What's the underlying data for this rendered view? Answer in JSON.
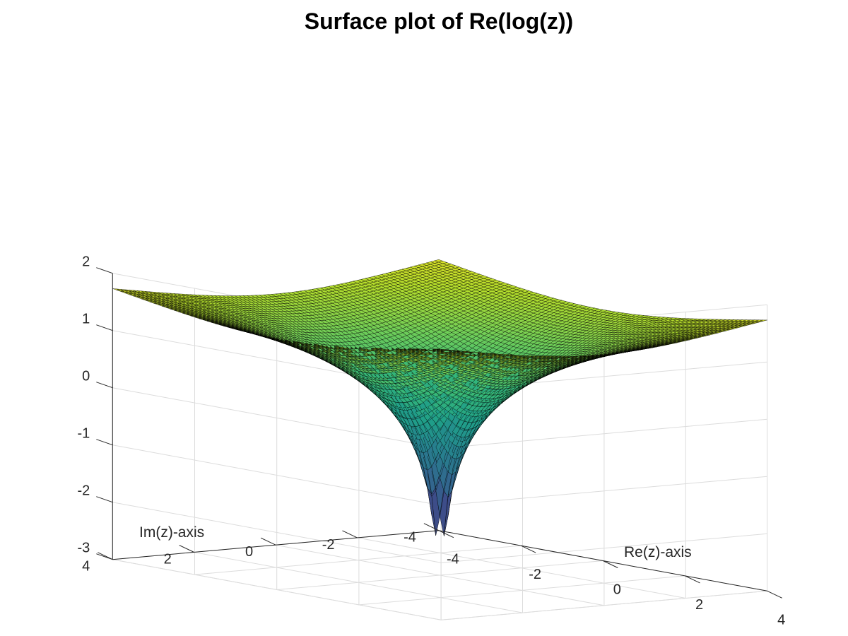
{
  "chart_data": {
    "type": "surface",
    "title": "Surface plot of Re(log(z))",
    "function": "Re(log(z))",
    "xlabel": "Re(z)-axis",
    "ylabel": "Im(z)-axis",
    "zlabel": "",
    "xlim": [
      -4,
      4
    ],
    "ylim": [
      -4,
      4
    ],
    "zlim": [
      -3,
      2
    ],
    "x_ticks": [
      "-4",
      "-2",
      "0",
      "2",
      "4"
    ],
    "y_ticks": [
      "-4",
      "-2",
      "0",
      "2",
      "4"
    ],
    "z_ticks": [
      "-3",
      "-2",
      "-1",
      "0",
      "1",
      "2"
    ],
    "grid": true,
    "colormap": "viridis",
    "colors": {
      "grid": "#dcdcdc",
      "axis": "#262626",
      "mesh_edge": "#000000"
    }
  }
}
